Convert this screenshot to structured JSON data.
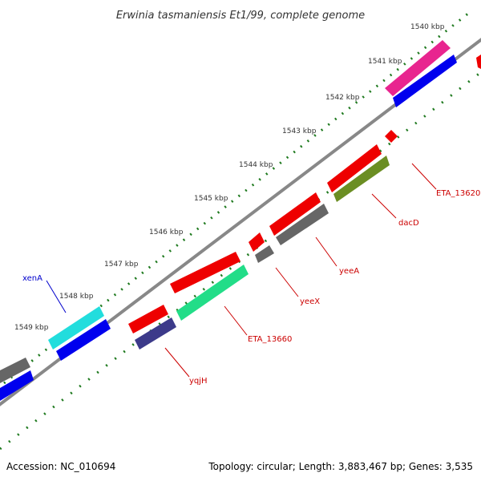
{
  "title": "Erwinia tasmaniensis Et1/99, complete genome",
  "footer": {
    "accession": "Accession: NC_010694",
    "summary": "Topology: circular; Length: 3,883,467 bp; Genes: 3,535"
  },
  "ticks": [
    "1540 kbp",
    "1541 kbp",
    "1542 kbp",
    "1543 kbp",
    "1544 kbp",
    "1545 kbp",
    "1546 kbp",
    "1547 kbp",
    "1548 kbp",
    "1549 kbp"
  ],
  "gene_labels": [
    {
      "id": "xenA",
      "text": "xenA",
      "color": "#0000cc"
    },
    {
      "id": "ETA_13620",
      "text": "ETA_13620",
      "color": "#cc0000"
    },
    {
      "id": "dacD",
      "text": "dacD",
      "color": "#cc0000"
    },
    {
      "id": "yeeA",
      "text": "yeeA",
      "color": "#cc0000"
    },
    {
      "id": "yeeX",
      "text": "yeeX",
      "color": "#cc0000"
    },
    {
      "id": "ETA_13660",
      "text": "ETA_13660",
      "color": "#cc0000"
    },
    {
      "id": "yqjH",
      "text": "yqjH",
      "color": "#cc0000"
    }
  ],
  "colors": {
    "backbone": "#888888",
    "tick_dots": "#1f7a1f",
    "gene_red": "#ee0000",
    "cog_magenta": "#e8258f",
    "cog_blue": "#0000ee",
    "cog_cyan": "#22dddd",
    "cog_gray": "#666666",
    "cog_olive": "#6b8e23",
    "cog_green": "#22dd88",
    "cog_slate": "#3c3a8a"
  }
}
